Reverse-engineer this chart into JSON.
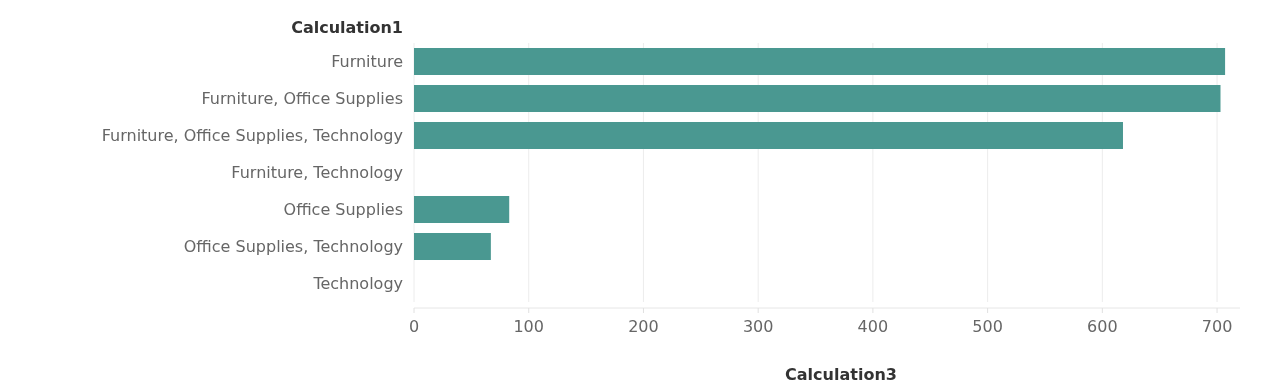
{
  "chart_data": {
    "type": "bar",
    "orientation": "horizontal",
    "ylabel": "Calculation1",
    "xlabel": "Calculation3",
    "categories": [
      "Furniture",
      "Furniture, Office Supplies",
      "Furniture, Office Supplies, Technology",
      "Furniture, Technology",
      "Office Supplies",
      "Office Supplies, Technology",
      "Technology"
    ],
    "values": [
      707,
      703,
      618,
      null,
      83,
      67,
      null
    ],
    "color": "#4a9891",
    "xlim": [
      0,
      720
    ],
    "xticks": [
      0,
      100,
      200,
      300,
      400,
      500,
      600,
      700
    ],
    "grid": "x"
  }
}
